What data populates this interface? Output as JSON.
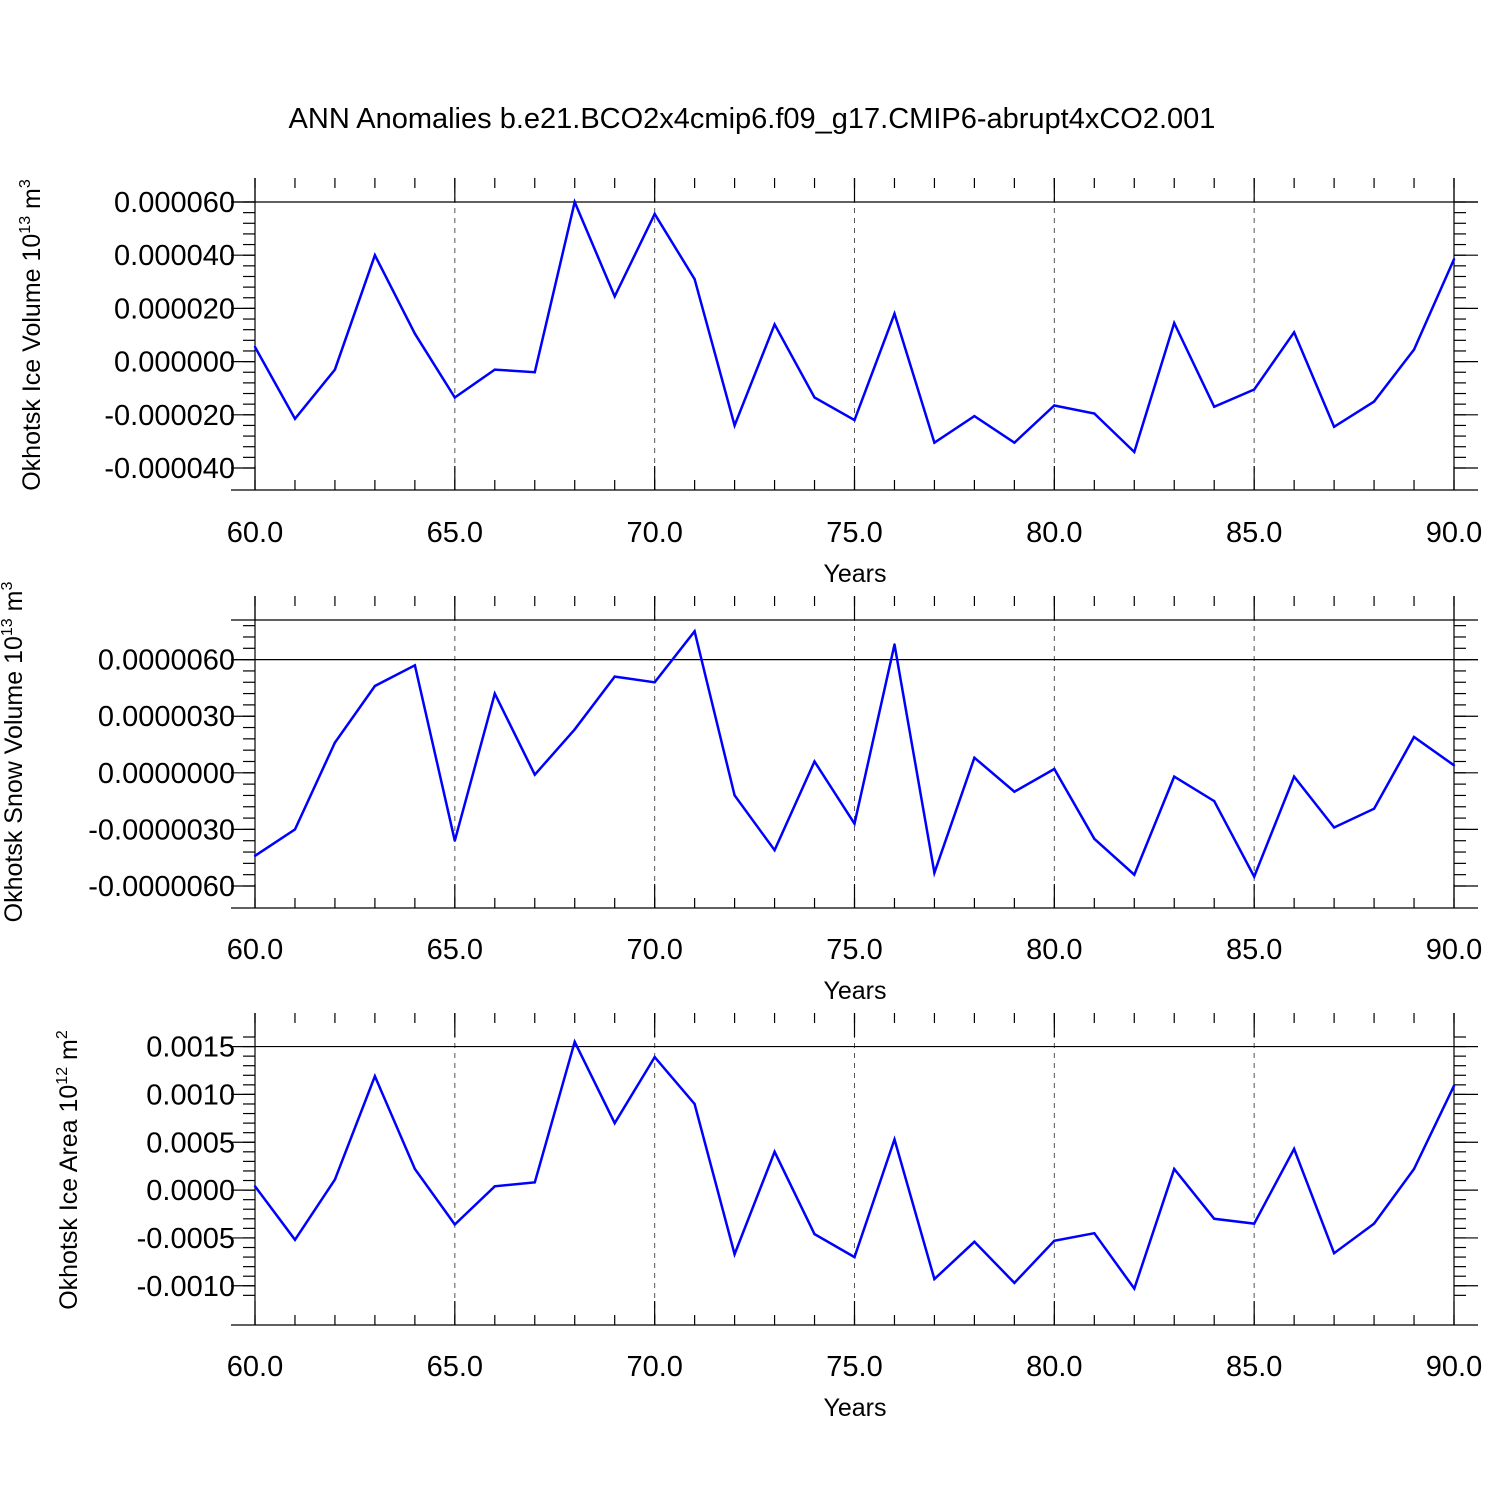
{
  "title": "ANN Anomalies b.e21.BCO2x4cmip6.f09_g17.CMIP6-abrupt4xCO2.001",
  "colors": {
    "series": "#0000ff",
    "axis": "#000000",
    "grid": "#555555"
  },
  "chart_data": [
    {
      "type": "line",
      "ylabel": "Okhotsk Ice Volume 10",
      "ylabel_exp": "13",
      "ylabel_unit": " m",
      "ylabel_unit_exp": "3",
      "xlabel": "Years",
      "xlim": [
        60,
        90
      ],
      "ylim": [
        -4e-05,
        6e-05
      ],
      "grid": "vertical-dashed",
      "x_ticks": [
        "60.0",
        "65.0",
        "70.0",
        "75.0",
        "80.0",
        "85.0",
        "90.0"
      ],
      "y_ticks": [
        {
          "v": 6e-05,
          "label": "0.000060"
        },
        {
          "v": 4e-05,
          "label": "0.000040"
        },
        {
          "v": 2e-05,
          "label": "0.000020"
        },
        {
          "v": 0.0,
          "label": "0.000000"
        },
        {
          "v": -2e-05,
          "label": "-0.000020"
        },
        {
          "v": -4e-05,
          "label": "-0.000040"
        }
      ],
      "x": [
        60,
        61,
        62,
        63,
        64,
        65,
        66,
        67,
        68,
        69,
        70,
        71,
        72,
        73,
        74,
        75,
        76,
        77,
        78,
        79,
        80,
        81,
        82,
        83,
        84,
        85,
        86,
        87,
        88,
        89,
        90
      ],
      "values": [
        5.5e-06,
        -2.15e-05,
        -3e-06,
        4e-05,
        1.05e-05,
        -1.35e-05,
        -3e-06,
        -4e-06,
        6e-05,
        2.45e-05,
        5.55e-05,
        3.1e-05,
        -2.4e-05,
        1.4e-05,
        -1.35e-05,
        -2.2e-05,
        1.8e-05,
        -3.05e-05,
        -2.05e-05,
        -3.05e-05,
        -1.65e-05,
        -1.95e-05,
        -3.4e-05,
        1.45e-05,
        -1.7e-05,
        -1.05e-05,
        1.1e-05,
        -2.45e-05,
        -1.5e-05,
        4.5e-06,
        3.85e-05
      ]
    },
    {
      "type": "line",
      "ylabel": "Okhotsk Snow Volume 10",
      "ylabel_exp": "13",
      "ylabel_unit": " m",
      "ylabel_unit_exp": "3",
      "xlabel": "Years",
      "xlim": [
        60,
        90
      ],
      "ylim": [
        -6e-06,
        8.1e-06
      ],
      "grid": "vertical-dashed",
      "x_ticks": [
        "60.0",
        "65.0",
        "70.0",
        "75.0",
        "80.0",
        "85.0",
        "90.0"
      ],
      "y_ticks": [
        {
          "v": 6e-06,
          "label": "0.0000060"
        },
        {
          "v": 3e-06,
          "label": "0.0000030"
        },
        {
          "v": 0.0,
          "label": "0.0000000"
        },
        {
          "v": -3e-06,
          "label": "-0.0000030"
        },
        {
          "v": -6e-06,
          "label": "-0.0000060"
        }
      ],
      "x": [
        60,
        61,
        62,
        63,
        64,
        65,
        66,
        67,
        68,
        69,
        70,
        71,
        72,
        73,
        74,
        75,
        76,
        77,
        78,
        79,
        80,
        81,
        82,
        83,
        84,
        85,
        86,
        87,
        88,
        89,
        90
      ],
      "values": [
        -4.4e-06,
        -3e-06,
        1.6e-06,
        4.6e-06,
        5.7e-06,
        -3.6e-06,
        4.2e-06,
        -1e-07,
        2.3e-06,
        5.1e-06,
        4.8e-06,
        7.5e-06,
        -1.2e-06,
        -4.1e-06,
        6e-07,
        -2.7e-06,
        6.8e-06,
        -5.3e-06,
        8e-07,
        -1e-06,
        2e-07,
        -3.5e-06,
        -5.4e-06,
        -2e-07,
        -1.5e-06,
        -5.5e-06,
        -2e-07,
        -2.9e-06,
        -1.9e-06,
        1.9e-06,
        4e-07
      ]
    },
    {
      "type": "line",
      "ylabel": "Okhotsk Ice Area 10",
      "ylabel_exp": "12",
      "ylabel_unit": " m",
      "ylabel_unit_exp": "2",
      "xlabel": "Years",
      "xlim": [
        60,
        90
      ],
      "ylim": [
        -0.00118,
        0.0016
      ],
      "grid": "vertical-dashed",
      "x_ticks": [
        "60.0",
        "65.0",
        "70.0",
        "75.0",
        "80.0",
        "85.0",
        "90.0"
      ],
      "y_ticks": [
        {
          "v": 0.0015,
          "label": "0.0015"
        },
        {
          "v": 0.001,
          "label": "0.0010"
        },
        {
          "v": 0.0005,
          "label": "0.0005"
        },
        {
          "v": 0.0,
          "label": "0.0000"
        },
        {
          "v": -0.0005,
          "label": "-0.0005"
        },
        {
          "v": -0.001,
          "label": "-0.0010"
        }
      ],
      "x": [
        60,
        61,
        62,
        63,
        64,
        65,
        66,
        67,
        68,
        69,
        70,
        71,
        72,
        73,
        74,
        75,
        76,
        77,
        78,
        79,
        80,
        81,
        82,
        83,
        84,
        85,
        86,
        87,
        88,
        89,
        90
      ],
      "values": [
        4e-05,
        -0.00052,
        0.00011,
        0.00119,
        0.00022,
        -0.00036,
        4e-05,
        8e-05,
        0.00155,
        0.0007,
        0.00139,
        0.0009,
        -0.00067,
        0.0004,
        -0.00046,
        -0.0007,
        0.00053,
        -0.00093,
        -0.00054,
        -0.00097,
        -0.00053,
        -0.00045,
        -0.00103,
        0.00022,
        -0.0003,
        -0.00035,
        0.00043,
        -0.00066,
        -0.00035,
        0.00022,
        0.00109
      ]
    }
  ]
}
